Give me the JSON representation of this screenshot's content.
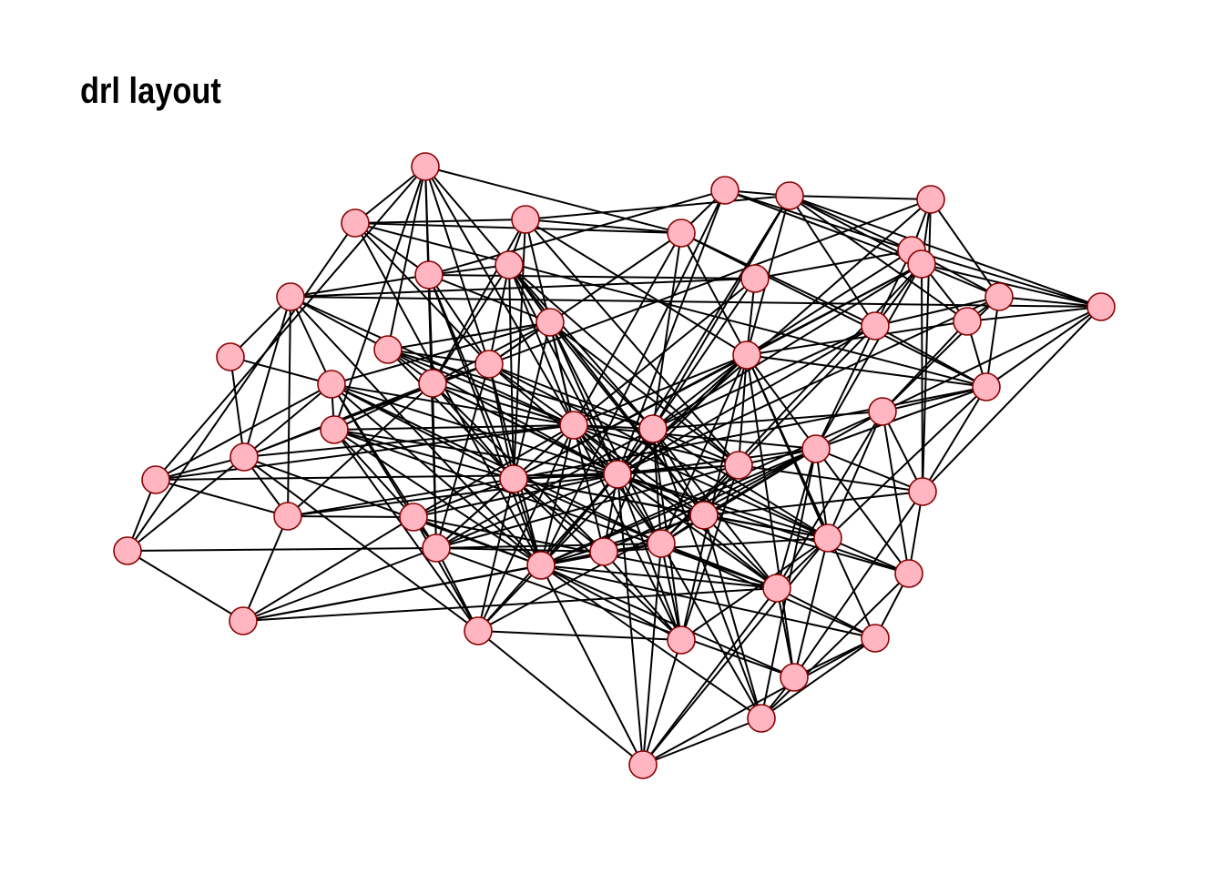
{
  "title": "drl layout",
  "colors": {
    "node_fill": "#ffb6c1",
    "node_stroke": "#8b0000",
    "edge": "#000000"
  },
  "graph": {
    "node_count": 59,
    "layout": "drl"
  }
}
